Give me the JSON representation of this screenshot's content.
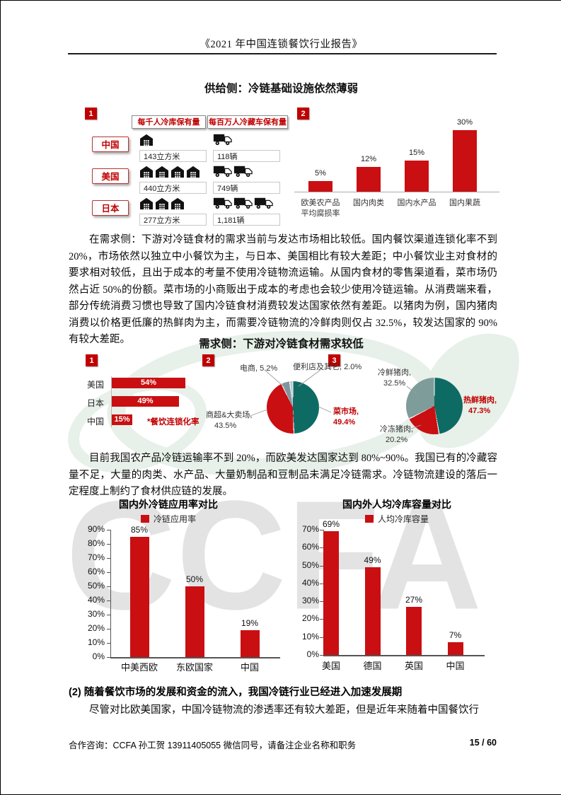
{
  "header": {
    "title": "《2021 年中国连锁餐饮行业报告》"
  },
  "supply": {
    "title": "供给侧：冷链基础设施依然薄弱",
    "badges": [
      "1",
      "2"
    ],
    "infographic": {
      "col_headers": [
        "每千人冷库保有量",
        "每百万人冷藏车保有量"
      ],
      "rows": [
        {
          "country": "中国",
          "storage": "143立方米",
          "storage_icons": 1,
          "trucks": "118辆",
          "truck_icons": 1
        },
        {
          "country": "美国",
          "storage": "440立方米",
          "storage_icons": 4,
          "trucks": "749辆",
          "truck_icons": 2
        },
        {
          "country": "日本",
          "storage": "277立方米",
          "storage_icons": 3,
          "trucks": "1,181辆",
          "truck_icons": 3
        }
      ]
    }
  },
  "demand": {
    "title": "需求侧：下游对冷链食材需求较低",
    "badges": [
      "1",
      "2",
      "3"
    ]
  },
  "paragraphs": {
    "p1": "在需求侧：下游对冷链食材的需求当前与发达市场相比较低。国内餐饮渠道连锁化率不到 20%，市场依然以独立中小餐饮为主，与日本、美国相比有较大差距；中小餐饮业主对食材的要求相对较低，且出于成本的考量不使用冷链物流运输。从国内食材的零售渠道看，菜市场仍然占近 50%的份额。菜市场的小商贩出于成本的考虑也会较少使用冷链运输。从消费端来看，部分传统消费习惯也导致了国内冷链食材消费较发达国家依然有差距。以猪肉为例，国内猪肉消费以价格更低廉的热鲜肉为主，而需要冷链物流的冷鲜肉则仅占 32.5%，较发达国家的 90%有较大差距。",
    "p2": "目前我国农产品冷链运输率不到 20%，而欧美发达国家达到 80%~90%。我国已有的冷藏容量不足，大量的肉类、水产品、大量奶制品和豆制品未满足冷链需求。冷链物流建设的落后一定程度上制约了食材供应链的发展。",
    "heading2": "(2) 随着餐饮市场的发展和资金的流入，我国冷链行业已经进入加速发展期",
    "p3": "尽管对比欧美国家，中国冷链物流的渗透率还有较大差距，但是近年来随着中国餐饮行"
  },
  "watermark": {
    "text": "CCFA"
  },
  "footer": {
    "left": "合作咨询：CCFA 孙工贺 13911405055 微信同号，请备注企业名称和职务",
    "page": "15 / 60"
  },
  "colors": {
    "accent_red": "#c00000",
    "bar_red": "#c90f12",
    "teal": "#0e6b64",
    "gray_teal": "#7e9c9a",
    "slate": "#7f96a0",
    "light_slate": "#b7c6c9",
    "watermark_green": "#e7f0e9",
    "watermark_gray": "#e3e3e3"
  },
  "chart_data": [
    {
      "id": "spoilage-rates",
      "type": "bar",
      "categories": [
        "欧美农产品\n平均腐损率",
        "国内肉类",
        "国内水产品",
        "国内果蔬"
      ],
      "values": [
        5,
        12,
        15,
        30
      ],
      "labels": [
        "5%",
        "12%",
        "15%",
        "30%"
      ],
      "title": "",
      "xlabel": "",
      "ylabel": "",
      "ylim": [
        0,
        30
      ],
      "grid": false,
      "axis_labels_hidden": true
    },
    {
      "id": "restaurant-chain-rate",
      "type": "bar-horizontal",
      "categories": [
        "美国",
        "日本",
        "中国"
      ],
      "values": [
        54,
        49,
        15
      ],
      "labels": [
        "54%",
        "49%",
        "15%"
      ],
      "note": "*餐饮连锁化率",
      "xlim": [
        0,
        60
      ]
    },
    {
      "id": "food-retail-channels",
      "type": "pie",
      "slices": [
        {
          "label": "菜市场",
          "value": 49.4,
          "line1": "菜市场,",
          "line2": "49.4%",
          "color": "#0e6b64",
          "label_color": "#c00000"
        },
        {
          "label": "商超&大卖场",
          "value": 43.5,
          "line1": "商超&大卖场,",
          "line2": "43.5%",
          "color": "#c90f12",
          "label_color": "#333333"
        },
        {
          "label": "电商",
          "value": 5.2,
          "line1": "电商, 5.2%",
          "line2": "",
          "color": "#7f96a0",
          "label_color": "#333333"
        },
        {
          "label": "便利店及其它",
          "value": 2.0,
          "line1": "便利店及其它, 2.0%",
          "line2": "",
          "color": "#b7c6c9",
          "label_color": "#333333"
        }
      ]
    },
    {
      "id": "pork-consumption-structure",
      "type": "pie",
      "slices": [
        {
          "label": "热鲜猪肉",
          "value": 47.3,
          "line1": "热鲜猪肉,",
          "line2": "47.3%",
          "color": "#0e6b64",
          "label_color": "#c00000"
        },
        {
          "label": "冷冻猪肉",
          "value": 20.2,
          "line1": "冷冻猪肉,",
          "line2": "20.2%",
          "color": "#c90f12",
          "label_color": "#333333"
        },
        {
          "label": "冷鲜猪肉",
          "value": 32.5,
          "line1": "冷鲜猪肉,",
          "line2": "32.5%",
          "color": "#7e9c9a",
          "label_color": "#333333"
        }
      ]
    },
    {
      "id": "cold-chain-application-rate",
      "type": "bar",
      "title": "国内外冷链应用率对比",
      "legend": "冷链应用率",
      "categories": [
        "中美西欧",
        "东欧国家",
        "中国"
      ],
      "values": [
        85,
        50,
        19
      ],
      "labels": [
        "85%",
        "50%",
        "19%"
      ],
      "ylim": [
        0,
        90
      ],
      "ytick_step": 10,
      "grid": false,
      "legend_position": "top"
    },
    {
      "id": "per-capita-cold-storage",
      "type": "bar",
      "title": "国内外人均冷库容量对比",
      "legend": "人均冷库容量",
      "categories": [
        "美国",
        "德国",
        "英国",
        "中国"
      ],
      "values": [
        69,
        49,
        27,
        7
      ],
      "labels": [
        "69%",
        "49%",
        "27%",
        "7%"
      ],
      "ylim": [
        0,
        70
      ],
      "ytick_step": 10,
      "grid": false,
      "legend_position": "top"
    }
  ]
}
